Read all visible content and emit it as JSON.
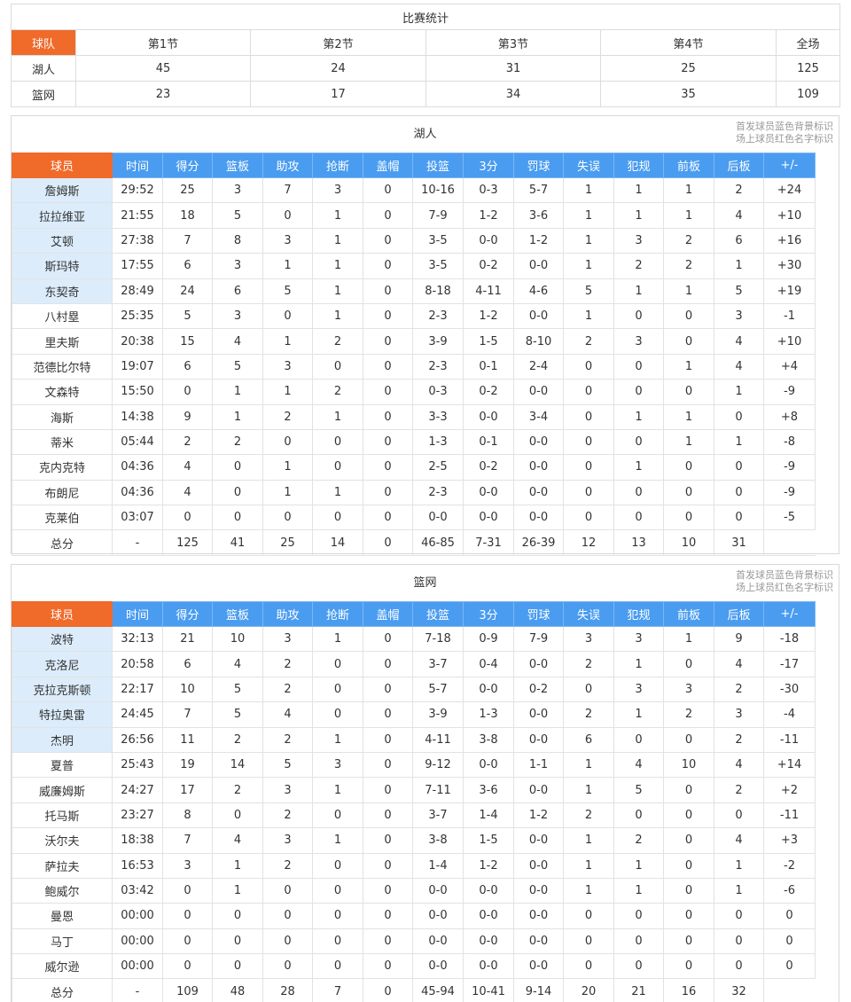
{
  "summary": {
    "title": "比赛统计",
    "header": [
      "球队",
      "第1节",
      "第2节",
      "第3节",
      "第4节",
      "全场"
    ],
    "rows": [
      [
        "湖人",
        "45",
        "24",
        "31",
        "25",
        "125"
      ],
      [
        "篮网",
        "23",
        "17",
        "34",
        "35",
        "109"
      ]
    ]
  },
  "note": {
    "line1": "首发球员蓝色背景标识",
    "line2": "场上球员红色名字标识"
  },
  "columns": [
    "球员",
    "时间",
    "得分",
    "篮板",
    "助攻",
    "抢断",
    "盖帽",
    "投篮",
    "3分",
    "罚球",
    "失误",
    "犯规",
    "前板",
    "后板",
    "+/-"
  ],
  "colors": {
    "header_blue": "#4a9cf0",
    "header_orange": "#f06a2a",
    "starter_bg": "#dcecfb"
  },
  "teams": [
    {
      "name": "湖人",
      "players": [
        [
          "詹姆斯",
          "29:52",
          "25",
          "3",
          "7",
          "3",
          "0",
          "10-16",
          "0-3",
          "5-7",
          "1",
          "1",
          "1",
          "2",
          "+24"
        ],
        [
          "拉拉维亚",
          "21:55",
          "18",
          "5",
          "0",
          "1",
          "0",
          "7-9",
          "1-2",
          "3-6",
          "1",
          "1",
          "1",
          "4",
          "+10"
        ],
        [
          "艾顿",
          "27:38",
          "7",
          "8",
          "3",
          "1",
          "0",
          "3-5",
          "0-0",
          "1-2",
          "1",
          "3",
          "2",
          "6",
          "+16"
        ],
        [
          "斯玛特",
          "17:55",
          "6",
          "3",
          "1",
          "1",
          "0",
          "3-5",
          "0-2",
          "0-0",
          "1",
          "2",
          "2",
          "1",
          "+30"
        ],
        [
          "东契奇",
          "28:49",
          "24",
          "6",
          "5",
          "1",
          "0",
          "8-18",
          "4-11",
          "4-6",
          "5",
          "1",
          "1",
          "5",
          "+19"
        ],
        [
          "八村塁",
          "25:35",
          "5",
          "3",
          "0",
          "1",
          "0",
          "2-3",
          "1-2",
          "0-0",
          "1",
          "0",
          "0",
          "3",
          "-1"
        ],
        [
          "里夫斯",
          "20:38",
          "15",
          "4",
          "1",
          "2",
          "0",
          "3-9",
          "1-5",
          "8-10",
          "2",
          "3",
          "0",
          "4",
          "+10"
        ],
        [
          "范德比尔特",
          "19:07",
          "6",
          "5",
          "3",
          "0",
          "0",
          "2-3",
          "0-1",
          "2-4",
          "0",
          "0",
          "1",
          "4",
          "+4"
        ],
        [
          "文森特",
          "15:50",
          "0",
          "1",
          "1",
          "2",
          "0",
          "0-3",
          "0-2",
          "0-0",
          "0",
          "0",
          "0",
          "1",
          "-9"
        ],
        [
          "海斯",
          "14:38",
          "9",
          "1",
          "2",
          "1",
          "0",
          "3-3",
          "0-0",
          "3-4",
          "0",
          "1",
          "1",
          "0",
          "+8"
        ],
        [
          "蒂米",
          "05:44",
          "2",
          "2",
          "0",
          "0",
          "0",
          "1-3",
          "0-1",
          "0-0",
          "0",
          "0",
          "1",
          "1",
          "-8"
        ],
        [
          "克内克特",
          "04:36",
          "4",
          "0",
          "1",
          "0",
          "0",
          "2-5",
          "0-2",
          "0-0",
          "0",
          "1",
          "0",
          "0",
          "-9"
        ],
        [
          "布朗尼",
          "04:36",
          "4",
          "0",
          "1",
          "1",
          "0",
          "2-3",
          "0-0",
          "0-0",
          "0",
          "0",
          "0",
          "0",
          "-9"
        ],
        [
          "克莱伯",
          "03:07",
          "0",
          "0",
          "0",
          "0",
          "0",
          "0-0",
          "0-0",
          "0-0",
          "0",
          "0",
          "0",
          "0",
          "-5"
        ]
      ],
      "total": [
        "总分",
        "-",
        "125",
        "41",
        "25",
        "14",
        "0",
        "46-85",
        "7-31",
        "26-39",
        "12",
        "13",
        "10",
        "31",
        ""
      ]
    },
    {
      "name": "篮网",
      "players": [
        [
          "波特",
          "32:13",
          "21",
          "10",
          "3",
          "1",
          "0",
          "7-18",
          "0-9",
          "7-9",
          "3",
          "3",
          "1",
          "9",
          "-18"
        ],
        [
          "克洛尼",
          "20:58",
          "6",
          "4",
          "2",
          "0",
          "0",
          "3-7",
          "0-4",
          "0-0",
          "2",
          "1",
          "0",
          "4",
          "-17"
        ],
        [
          "克拉克斯顿",
          "22:17",
          "10",
          "5",
          "2",
          "0",
          "0",
          "5-7",
          "0-0",
          "0-2",
          "0",
          "3",
          "3",
          "2",
          "-30"
        ],
        [
          "特拉奥雷",
          "24:45",
          "7",
          "5",
          "4",
          "0",
          "0",
          "3-9",
          "1-3",
          "0-0",
          "2",
          "1",
          "2",
          "3",
          "-4"
        ],
        [
          "杰明",
          "26:56",
          "11",
          "2",
          "2",
          "1",
          "0",
          "4-11",
          "3-8",
          "0-0",
          "6",
          "0",
          "0",
          "2",
          "-11"
        ],
        [
          "夏普",
          "25:43",
          "19",
          "14",
          "5",
          "3",
          "0",
          "9-12",
          "0-0",
          "1-1",
          "1",
          "4",
          "10",
          "4",
          "+14"
        ],
        [
          "威廉姆斯",
          "24:27",
          "17",
          "2",
          "3",
          "1",
          "0",
          "7-11",
          "3-6",
          "0-0",
          "1",
          "5",
          "0",
          "2",
          "+2"
        ],
        [
          "托马斯",
          "23:27",
          "8",
          "0",
          "2",
          "0",
          "0",
          "3-7",
          "1-4",
          "1-2",
          "2",
          "0",
          "0",
          "0",
          "-11"
        ],
        [
          "沃尔夫",
          "18:38",
          "7",
          "4",
          "3",
          "1",
          "0",
          "3-8",
          "1-5",
          "0-0",
          "1",
          "2",
          "0",
          "4",
          "+3"
        ],
        [
          "萨拉夫",
          "16:53",
          "3",
          "1",
          "2",
          "0",
          "0",
          "1-4",
          "1-2",
          "0-0",
          "1",
          "1",
          "0",
          "1",
          "-2"
        ],
        [
          "鲍威尔",
          "03:42",
          "0",
          "1",
          "0",
          "0",
          "0",
          "0-0",
          "0-0",
          "0-0",
          "1",
          "1",
          "0",
          "1",
          "-6"
        ],
        [
          "曼恩",
          "00:00",
          "0",
          "0",
          "0",
          "0",
          "0",
          "0-0",
          "0-0",
          "0-0",
          "0",
          "0",
          "0",
          "0",
          "0"
        ],
        [
          "马丁",
          "00:00",
          "0",
          "0",
          "0",
          "0",
          "0",
          "0-0",
          "0-0",
          "0-0",
          "0",
          "0",
          "0",
          "0",
          "0"
        ],
        [
          "威尔逊",
          "00:00",
          "0",
          "0",
          "0",
          "0",
          "0",
          "0-0",
          "0-0",
          "0-0",
          "0",
          "0",
          "0",
          "0",
          "0"
        ]
      ],
      "total": [
        "总分",
        "-",
        "109",
        "48",
        "28",
        "7",
        "0",
        "45-94",
        "10-41",
        "9-14",
        "20",
        "21",
        "16",
        "32",
        ""
      ]
    }
  ]
}
